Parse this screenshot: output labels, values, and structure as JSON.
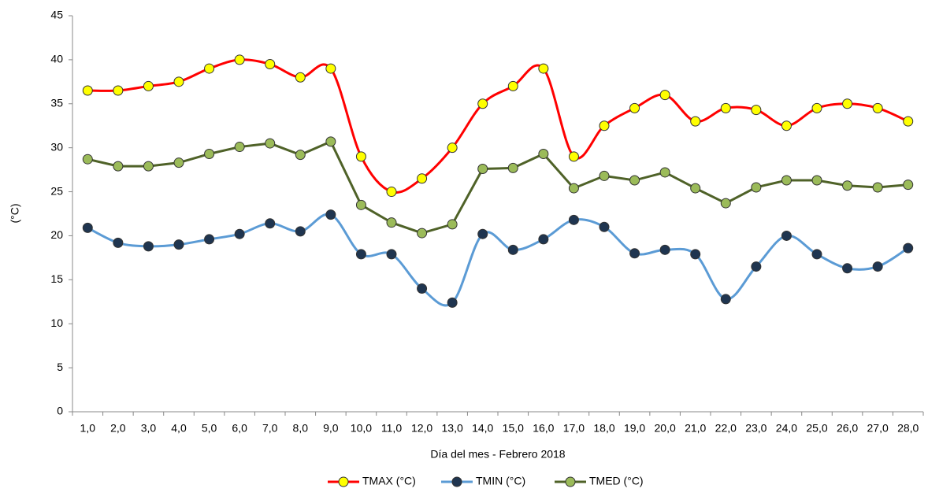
{
  "chart_data": {
    "type": "line",
    "y_label": "(°C)",
    "x_label": "Día del mes - Febrero 2018",
    "categories": [
      "1,0",
      "2,0",
      "3,0",
      "4,0",
      "5,0",
      "6,0",
      "7,0",
      "8,0",
      "9,0",
      "10,0",
      "11,0",
      "12,0",
      "13,0",
      "14,0",
      "15,0",
      "16,0",
      "17,0",
      "18,0",
      "19,0",
      "20,0",
      "21,0",
      "22,0",
      "23,0",
      "24,0",
      "25,0",
      "26,0",
      "27,0",
      "28,0"
    ],
    "series": [
      {
        "name": "TMAX (°C)",
        "color": "#ff0000",
        "marker_color": "#ffff00",
        "smooth": true,
        "values": [
          36.5,
          36.5,
          37,
          37.5,
          39,
          40,
          39.5,
          38,
          39,
          29,
          25,
          26.5,
          30,
          35,
          37,
          39,
          29,
          32.5,
          34.5,
          36,
          33,
          34.5,
          34.3,
          32.5,
          34.5,
          35,
          34.5,
          33
        ]
      },
      {
        "name": "TMIN (°C)",
        "color": "#5b9bd5",
        "marker_color": "#1f3550",
        "smooth": true,
        "values": [
          20.9,
          19.2,
          18.8,
          19,
          19.6,
          20.2,
          21.4,
          20.5,
          22.4,
          17.9,
          17.9,
          14,
          12.4,
          20.2,
          18.4,
          19.6,
          21.8,
          21,
          18,
          18.4,
          17.9,
          12.8,
          16.5,
          20,
          17.9,
          16.3,
          16.5,
          18.6
        ]
      },
      {
        "name": "TMED (°C)",
        "color": "#4f6228",
        "marker_color": "#9bbb59",
        "smooth": false,
        "values": [
          28.7,
          27.9,
          27.9,
          28.3,
          29.3,
          30.1,
          30.5,
          29.2,
          30.7,
          23.5,
          21.5,
          20.3,
          21.3,
          27.6,
          27.7,
          29.3,
          25.4,
          26.8,
          26.3,
          27.2,
          25.4,
          23.7,
          25.5,
          26.3,
          26.3,
          25.7,
          25.5,
          25.8
        ]
      }
    ],
    "ylim": [
      0,
      45
    ],
    "yticks": [
      0,
      5,
      10,
      15,
      20,
      25,
      30,
      35,
      40,
      45
    ],
    "grid": false,
    "legend": "bottom"
  }
}
